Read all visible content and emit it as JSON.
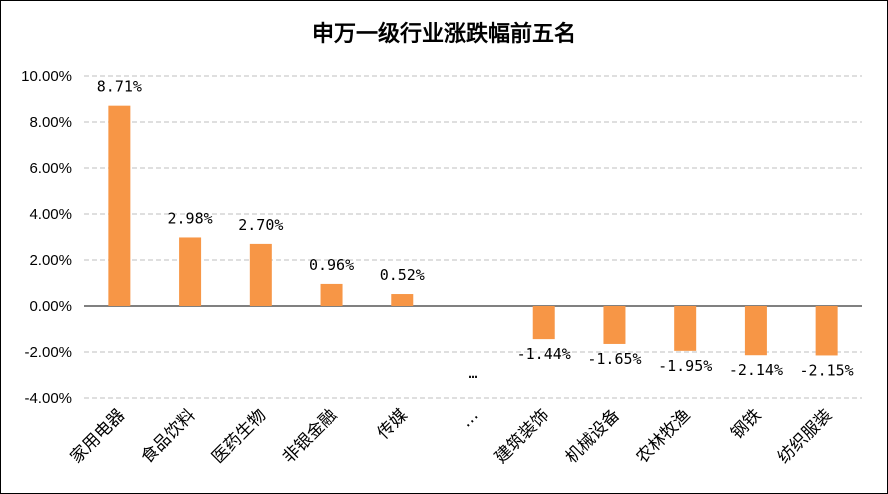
{
  "chart_data": {
    "type": "bar",
    "title": "申万一级行业涨跌幅前五名",
    "categories": [
      "家用电器",
      "食品饮料",
      "医药生物",
      "非银金融",
      "传媒",
      "…",
      "建筑装饰",
      "机械设备",
      "农林牧渔",
      "钢铁",
      "纺织服装"
    ],
    "values": [
      8.71,
      2.98,
      2.7,
      0.96,
      0.52,
      null,
      -1.44,
      -1.65,
      -1.95,
      -2.14,
      -2.15
    ],
    "data_labels": [
      "8.71%",
      "2.98%",
      "2.70%",
      "0.96%",
      "0.52%",
      "…",
      "-1.44%",
      "-1.65%",
      "-1.95%",
      "-2.14%",
      "-2.15%"
    ],
    "y_ticks": [
      "10.00%",
      "8.00%",
      "6.00%",
      "4.00%",
      "2.00%",
      "0.00%",
      "-2.00%",
      "-4.00%"
    ],
    "ylim": [
      -4,
      10
    ],
    "grid": "dashed-horizontal",
    "bar_color": "#F79646",
    "xlabel": "",
    "ylabel": ""
  }
}
